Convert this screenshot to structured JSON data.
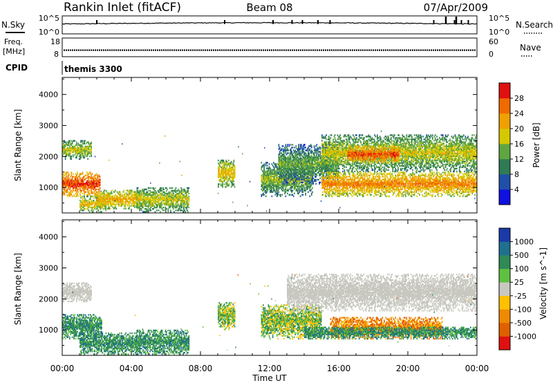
{
  "header": {
    "station": "Rankin Inlet (fitACF)",
    "beam": "Beam 08",
    "date": "07/Apr/2009"
  },
  "nsky_panel": {
    "left_label": "N.Sky",
    "right_label": "N.Search",
    "left_top_tick": "10^5",
    "left_bottom_tick": "10^0",
    "right_top_tick": "10^5",
    "right_bottom_tick": "10^0",
    "baseline_level": 0.55,
    "nsky_spike_hours": [
      2.0,
      9.4,
      12.2,
      13.3,
      13.9,
      14.8,
      15.5,
      21.5,
      22.2,
      22.7,
      23.1,
      23.5
    ],
    "nsearch_spike_hours": [
      22.2,
      22.8
    ]
  },
  "freq_panel": {
    "left_label_line1": "Freq.",
    "left_label_line2": "[MHz]",
    "right_label": "Nave",
    "left_ticks": [
      "18",
      "8"
    ],
    "right_ticks": [
      "60",
      "0"
    ],
    "freq_mhz": 11.5,
    "freq_range_mhz": [
      8,
      18
    ]
  },
  "cpid": {
    "label": "CPID",
    "program": "themis 3300"
  },
  "x_axis": {
    "label": "Time UT",
    "tick_labels": [
      "00:00",
      "04:00",
      "08:00",
      "12:00",
      "16:00",
      "20:00",
      "00:00"
    ],
    "range_hours": [
      0,
      24
    ]
  },
  "chart_data": [
    {
      "type": "heatmap",
      "parameter": "power",
      "ylabel": "Slant Range [km]",
      "y_ticks": [
        1000,
        2000,
        3000,
        4000
      ],
      "ylim_km": [
        180,
        4550
      ],
      "xlim_hours": [
        0,
        24
      ],
      "colorbar_label": "Power [dB]",
      "colorbar_ticks": [
        "4",
        "8",
        "12",
        "16",
        "20",
        "24",
        "28"
      ],
      "colorbar_colors": [
        "#1010e0",
        "#1f4fa8",
        "#2f7b55",
        "#5fa642",
        "#d6c800",
        "#f0a000",
        "#f06a00",
        "#e01010"
      ],
      "scale_db": [
        0,
        32
      ],
      "echo_regions": [
        {
          "t_start": 0.0,
          "t_end": 1.7,
          "r_min": 1900,
          "r_max": 2500,
          "value": 14
        },
        {
          "t_start": 0.0,
          "t_end": 2.2,
          "r_min": 700,
          "r_max": 1500,
          "value": 24
        },
        {
          "t_start": 1.0,
          "t_end": 2.5,
          "r_min": 200,
          "r_max": 700,
          "value": 16
        },
        {
          "t_start": 2.0,
          "t_end": 4.5,
          "r_min": 300,
          "r_max": 900,
          "value": 18
        },
        {
          "t_start": 4.3,
          "t_end": 7.3,
          "r_min": 200,
          "r_max": 1000,
          "value": 14
        },
        {
          "t_start": 9.0,
          "t_end": 10.0,
          "r_min": 1000,
          "r_max": 1900,
          "value": 16
        },
        {
          "t_start": 11.5,
          "t_end": 14.5,
          "r_min": 700,
          "r_max": 1800,
          "value": 12
        },
        {
          "t_start": 12.5,
          "t_end": 16.0,
          "r_min": 1100,
          "r_max": 2400,
          "value": 10
        },
        {
          "t_start": 15.0,
          "t_end": 24.0,
          "r_min": 1500,
          "r_max": 2700,
          "value": 14
        },
        {
          "t_start": 15.0,
          "t_end": 24.0,
          "r_min": 700,
          "r_max": 1500,
          "value": 20
        },
        {
          "t_start": 16.5,
          "t_end": 19.5,
          "r_min": 1800,
          "r_max": 2300,
          "value": 24
        }
      ]
    },
    {
      "type": "heatmap",
      "parameter": "velocity",
      "ylabel": "Slant Range [km]",
      "y_ticks": [
        1000,
        2000,
        3000,
        4000
      ],
      "ylim_km": [
        180,
        4550
      ],
      "xlim_hours": [
        0,
        24
      ],
      "colorbar_label": "Velocity [m s^-1]",
      "colorbar_ticks": [
        "1000",
        "500",
        "100",
        "25",
        "-25",
        "-100",
        "-500",
        "-1000"
      ],
      "colorbar_colors": [
        "#1a3aa8",
        "#1f6f8f",
        "#2f8a58",
        "#5fc040",
        "#c8c8c0",
        "#ffc000",
        "#f08a00",
        "#e06000",
        "#e01010"
      ],
      "echo_regions": [
        {
          "t_start": 0.0,
          "t_end": 1.7,
          "r_min": 1900,
          "r_max": 2500,
          "class": "ground-scatter"
        },
        {
          "t_start": 0.0,
          "t_end": 2.3,
          "r_min": 700,
          "r_max": 1500,
          "class": "positive-100"
        },
        {
          "t_start": 1.0,
          "t_end": 4.5,
          "r_min": 200,
          "r_max": 900,
          "class": "positive-100"
        },
        {
          "t_start": 4.3,
          "t_end": 7.3,
          "r_min": 200,
          "r_max": 1000,
          "class": "positive-100"
        },
        {
          "t_start": 9.0,
          "t_end": 10.0,
          "r_min": 1000,
          "r_max": 1900,
          "class": "positive-25"
        },
        {
          "t_start": 11.5,
          "t_end": 15.0,
          "r_min": 700,
          "r_max": 1800,
          "class": "positive-25"
        },
        {
          "t_start": 13.0,
          "t_end": 24.0,
          "r_min": 1600,
          "r_max": 2800,
          "class": "ground-scatter"
        },
        {
          "t_start": 15.5,
          "t_end": 22.0,
          "r_min": 700,
          "r_max": 1400,
          "class": "negative-500"
        },
        {
          "t_start": 14.0,
          "t_end": 24.0,
          "r_min": 700,
          "r_max": 1100,
          "class": "positive-100"
        }
      ]
    }
  ]
}
